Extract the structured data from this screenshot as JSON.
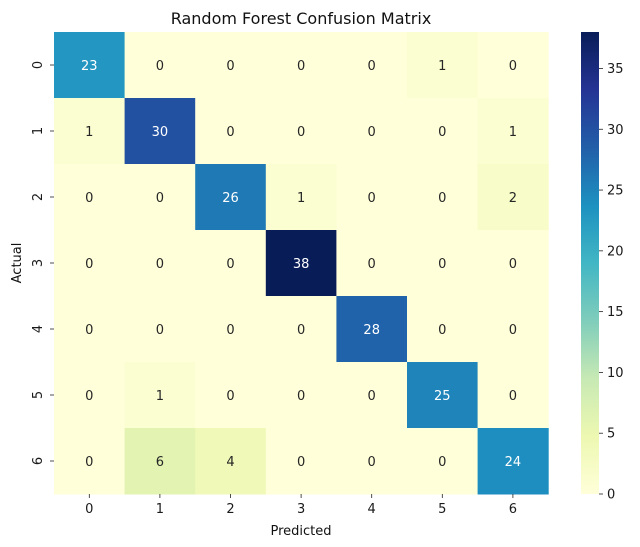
{
  "chart_data": {
    "type": "heatmap",
    "title": "Random Forest Confusion Matrix",
    "xlabel": "Predicted",
    "ylabel": "Actual",
    "x_categories": [
      "0",
      "1",
      "2",
      "3",
      "4",
      "5",
      "6"
    ],
    "y_categories": [
      "0",
      "1",
      "2",
      "3",
      "4",
      "5",
      "6"
    ],
    "values": [
      [
        23,
        0,
        0,
        0,
        0,
        1,
        0
      ],
      [
        1,
        30,
        0,
        0,
        0,
        0,
        1
      ],
      [
        0,
        0,
        26,
        1,
        0,
        0,
        2
      ],
      [
        0,
        0,
        0,
        38,
        0,
        0,
        0
      ],
      [
        0,
        0,
        0,
        0,
        28,
        0,
        0
      ],
      [
        0,
        1,
        0,
        0,
        0,
        25,
        0
      ],
      [
        0,
        6,
        4,
        0,
        0,
        0,
        24
      ]
    ],
    "colorbar": {
      "colormap": "YlGnBu",
      "range": [
        0,
        38
      ],
      "ticks": [
        "0",
        "5",
        "10",
        "15",
        "20",
        "25",
        "30",
        "35"
      ]
    },
    "grid": false
  }
}
